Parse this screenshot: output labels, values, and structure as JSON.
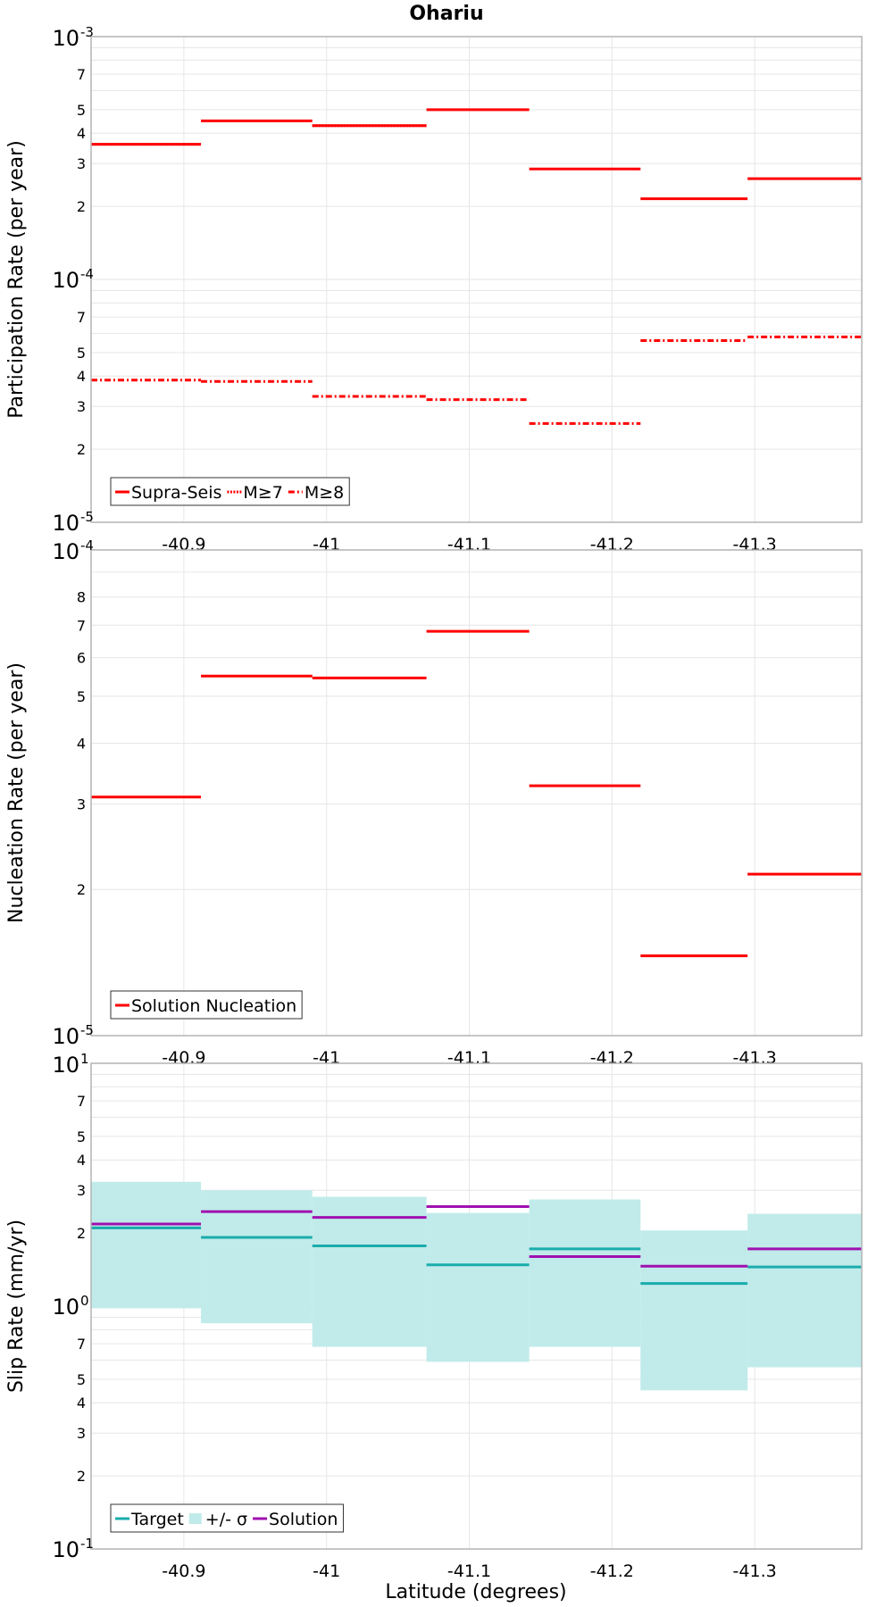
{
  "title": "Ohariu",
  "xlabel": "Latitude (degrees)",
  "colors": {
    "red": "#ff0000",
    "teal": "#1aacac",
    "band": "#c0ebea",
    "purple": "#a010b0",
    "grid": "#e6e6e6",
    "frame": "#b4b4b4"
  },
  "chart_data": [
    {
      "type": "line",
      "subtype": "step",
      "ylabel": "Participation Rate (per year)",
      "yscale": "log",
      "ylim": [
        1e-05,
        0.001
      ],
      "xlim": [
        -40.835,
        -41.375
      ],
      "x_ticks": [
        "-40.9",
        "-41",
        "-41.1",
        "-41.2",
        "-41.3"
      ],
      "y_major_ticks": [
        {
          "base": "10",
          "exp": "-5"
        },
        {
          "base": "10",
          "exp": "-4"
        },
        {
          "base": "10",
          "exp": "-3"
        }
      ],
      "y_minor_labels": [
        "2",
        "3",
        "4",
        "5",
        "7"
      ],
      "grid": true,
      "legend": "bottom-left",
      "segments": [
        [
          -40.835,
          -40.912
        ],
        [
          -40.912,
          -40.99
        ],
        [
          -40.99,
          -41.07
        ],
        [
          -41.07,
          -41.142
        ],
        [
          -41.142,
          -41.22
        ],
        [
          -41.22,
          -41.295
        ],
        [
          -41.295,
          -41.375
        ]
      ],
      "series": [
        {
          "name": "Supra-Seis",
          "style": "solid",
          "color": "#ff0000",
          "values": [
            0.00036,
            0.00045,
            0.00043,
            0.0005,
            0.000285,
            0.000215,
            0.00026
          ]
        },
        {
          "name": "M≥7",
          "style": "dotted",
          "color": "#ff0000",
          "values": [
            0.00036,
            null,
            0.00043,
            null,
            null,
            null,
            null
          ]
        },
        {
          "name": "M≥8",
          "style": "dashdot",
          "color": "#ff0000",
          "values": [
            3.85e-05,
            3.8e-05,
            3.3e-05,
            3.2e-05,
            2.55e-05,
            5.6e-05,
            5.8e-05
          ]
        }
      ]
    },
    {
      "type": "line",
      "subtype": "step",
      "ylabel": "Nucleation Rate (per year)",
      "yscale": "log",
      "ylim": [
        1e-05,
        0.0001
      ],
      "xlim": [
        -40.835,
        -41.375
      ],
      "x_ticks": [
        "-40.9",
        "-41",
        "-41.1",
        "-41.2",
        "-41.3"
      ],
      "y_major_ticks": [
        {
          "base": "10",
          "exp": "-5"
        },
        {
          "base": "10",
          "exp": "-4"
        }
      ],
      "y_minor_labels": [
        "2",
        "3",
        "4",
        "5",
        "6",
        "7",
        "8"
      ],
      "grid": true,
      "legend": "bottom-left",
      "segments": [
        [
          -40.835,
          -40.912
        ],
        [
          -40.912,
          -40.99
        ],
        [
          -40.99,
          -41.07
        ],
        [
          -41.07,
          -41.142
        ],
        [
          -41.142,
          -41.22
        ],
        [
          -41.22,
          -41.295
        ],
        [
          -41.295,
          -41.375
        ]
      ],
      "series": [
        {
          "name": "Solution Nucleation",
          "style": "solid",
          "color": "#ff0000",
          "values": [
            3.1e-05,
            5.5e-05,
            5.45e-05,
            6.8e-05,
            3.27e-05,
            1.46e-05,
            2.15e-05
          ]
        }
      ]
    },
    {
      "type": "line",
      "subtype": "step",
      "ylabel": "Slip Rate (mm/yr)",
      "yscale": "log",
      "ylim": [
        0.1,
        10
      ],
      "xlim": [
        -40.835,
        -41.375
      ],
      "x_ticks": [
        "-40.9",
        "-41",
        "-41.1",
        "-41.2",
        "-41.3"
      ],
      "y_major_ticks": [
        {
          "base": "10",
          "exp": "-1"
        },
        {
          "base": "10",
          "exp": "0"
        },
        {
          "base": "10",
          "exp": "1"
        }
      ],
      "y_minor_labels": [
        "2",
        "3",
        "4",
        "5",
        "7"
      ],
      "grid": true,
      "legend": "bottom-left",
      "segments": [
        [
          -40.835,
          -40.912
        ],
        [
          -40.912,
          -40.99
        ],
        [
          -40.99,
          -41.07
        ],
        [
          -41.07,
          -41.142
        ],
        [
          -41.142,
          -41.22
        ],
        [
          -41.22,
          -41.295
        ],
        [
          -41.295,
          -41.375
        ]
      ],
      "series": [
        {
          "name": "Target",
          "style": "solid",
          "color": "#1aacac",
          "values": [
            2.1,
            1.92,
            1.77,
            1.48,
            1.72,
            1.24,
            1.45
          ]
        },
        {
          "name": "+/- σ",
          "style": "band",
          "color": "#c0ebea",
          "lower": [
            0.98,
            0.85,
            0.68,
            0.59,
            0.68,
            0.45,
            0.56
          ],
          "upper": [
            3.25,
            3.0,
            2.82,
            2.42,
            2.75,
            2.05,
            2.4
          ]
        },
        {
          "name": "Solution",
          "style": "solid",
          "color": "#a010b0",
          "values": [
            2.18,
            2.45,
            2.32,
            2.57,
            1.6,
            1.46,
            1.72
          ]
        }
      ]
    }
  ]
}
